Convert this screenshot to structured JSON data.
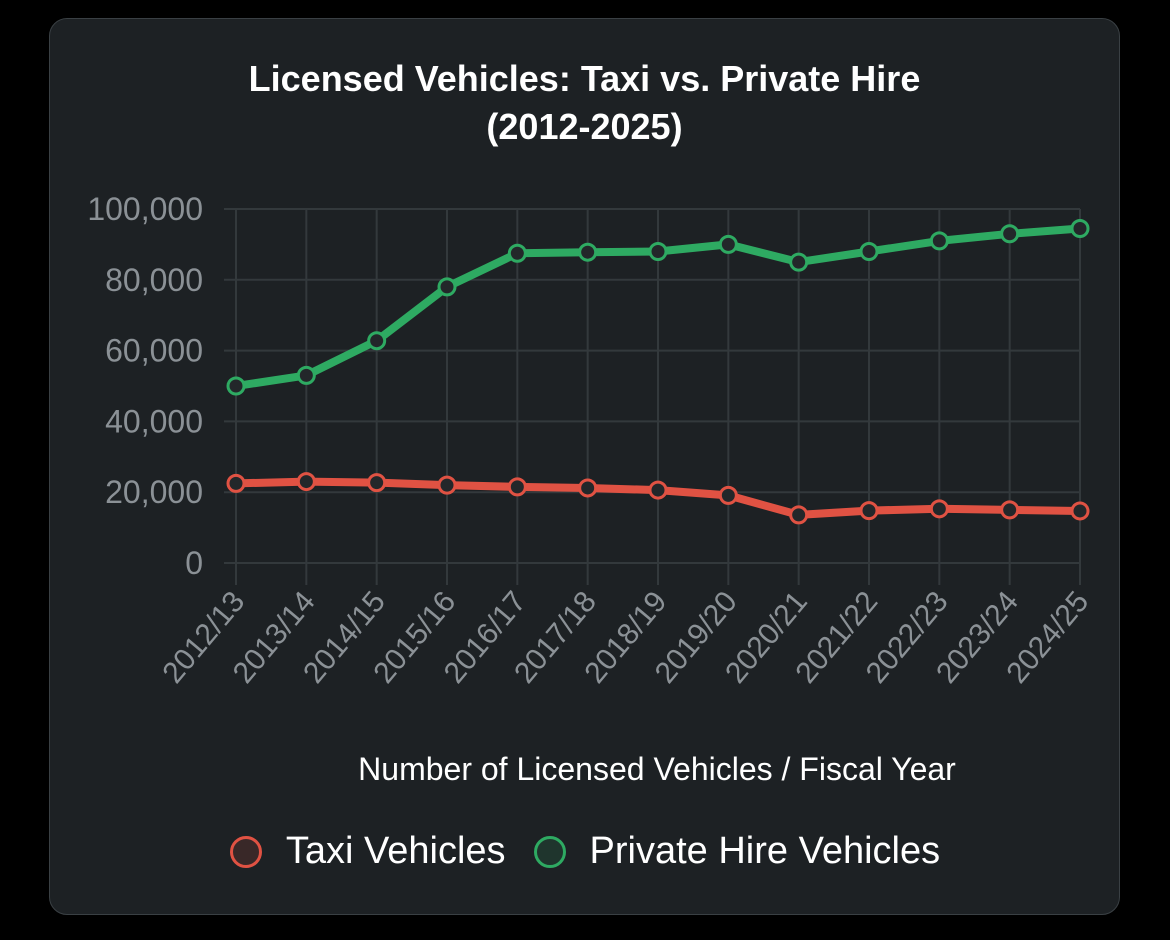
{
  "chart_data": {
    "type": "line",
    "title_line1": "Licensed Vehicles: Taxi vs. Private Hire",
    "title_line2": "(2012-2025)",
    "xlabel": "Number of Licensed Vehicles / Fiscal Year",
    "ylabel": "",
    "ylim": [
      0,
      100000
    ],
    "yticks": [
      0,
      20000,
      40000,
      60000,
      80000,
      100000
    ],
    "ytick_labels": [
      "0",
      "20,000",
      "40,000",
      "60,000",
      "80,000",
      "100,000"
    ],
    "categories": [
      "2012/13",
      "2013/14",
      "2014/15",
      "2015/16",
      "2016/17",
      "2017/18",
      "2018/19",
      "2019/20",
      "2020/21",
      "2021/22",
      "2022/23",
      "2023/24",
      "2024/25"
    ],
    "grid": true,
    "legend_position": "bottom",
    "series": [
      {
        "name": "Taxi Vehicles",
        "color": "#e05243",
        "values": [
          22500,
          23000,
          22700,
          22000,
          21500,
          21200,
          20600,
          19100,
          13600,
          14800,
          15300,
          15000,
          14700
        ]
      },
      {
        "name": "Private Hire Vehicles",
        "color": "#2eaa62",
        "values": [
          50000,
          53000,
          62800,
          78000,
          87500,
          87800,
          88000,
          90000,
          85000,
          88000,
          91000,
          93000,
          94500
        ]
      }
    ]
  },
  "colors": {
    "background": "#000000",
    "card": "#1d2124",
    "grid": "#33393c",
    "tick_text": "#8b9196",
    "title_text": "#ffffff"
  }
}
